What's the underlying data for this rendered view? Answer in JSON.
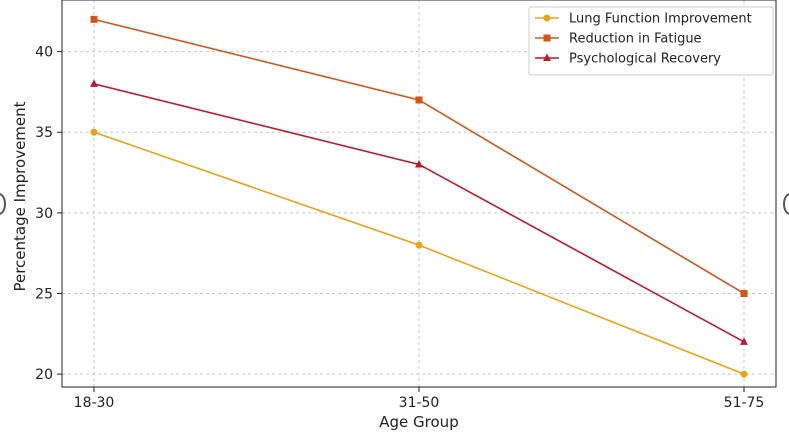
{
  "chart_data": {
    "type": "line",
    "title": "",
    "xlabel": "Age Group",
    "ylabel": "Percentage Improvement",
    "categories": [
      "18-30",
      "31-50",
      "51-75"
    ],
    "ylim": [
      19.2,
      43.2
    ],
    "yticks": [
      20,
      25,
      30,
      35,
      40
    ],
    "grid": true,
    "legend_position": "top-right",
    "series": [
      {
        "name": "Lung Function Improvement",
        "values": [
          35,
          28,
          20
        ],
        "color": "#e8a317",
        "marker": "circle"
      },
      {
        "name": "Reduction in Fatigue",
        "values": [
          42,
          37,
          25
        ],
        "color": "#d2561a",
        "marker": "square"
      },
      {
        "name": "Psychological Recovery",
        "values": [
          38,
          33,
          22
        ],
        "color": "#c0182e",
        "marker": "triangle"
      }
    ]
  }
}
